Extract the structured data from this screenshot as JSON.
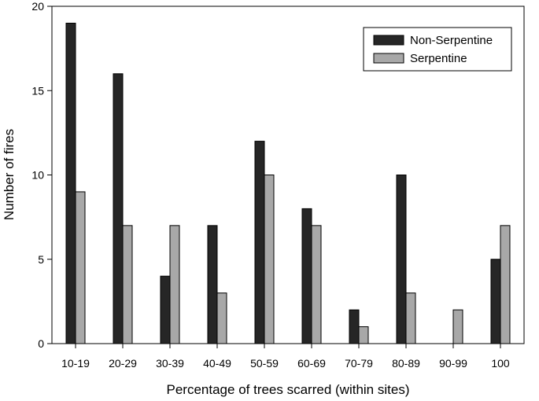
{
  "chart_data": {
    "type": "bar",
    "categories": [
      "10-19",
      "20-29",
      "30-39",
      "40-49",
      "50-59",
      "60-69",
      "70-79",
      "80-89",
      "90-99",
      "100"
    ],
    "series": [
      {
        "name": "Non-Serpentine",
        "color": "#262626",
        "values": [
          19,
          16,
          4,
          7,
          12,
          8,
          2,
          10,
          0,
          5
        ]
      },
      {
        "name": "Serpentine",
        "color": "#a8a8a8",
        "values": [
          9,
          7,
          7,
          3,
          10,
          7,
          1,
          3,
          2,
          7
        ]
      }
    ],
    "title": "",
    "xlabel": "Percentage of trees scarred (within sites)",
    "ylabel": "Number of fires",
    "ylim": [
      0,
      20
    ],
    "yticks": [
      0,
      5,
      10,
      15,
      20
    ],
    "grid": false,
    "legend_position": "top-right"
  }
}
